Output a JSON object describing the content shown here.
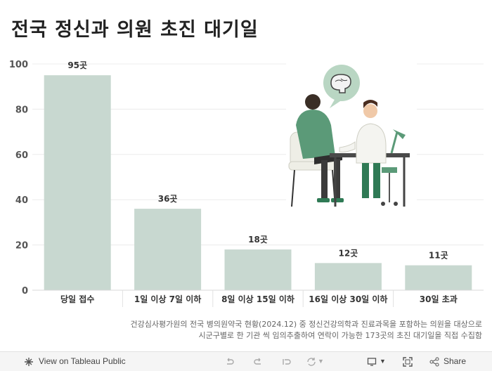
{
  "page": {
    "title": "전국 정신과 의원 초진 대기일",
    "note_line1": "건강심사평가원의 전국 병의원약국 현황(2024.12) 중 정신건강의학과 진료과목을 포함하는 의원을 대상으로",
    "note_line2": "시군구별로 한 기관 씩 임의추출하여 연락이 가능한 173곳의 초진 대기일을 직접 수집함"
  },
  "toolbar": {
    "view_label": "View on Tableau Public",
    "share_label": "Share"
  },
  "chart_data": {
    "type": "bar",
    "title": "전국 정신과 의원 초진 대기일",
    "categories": [
      "당일 접수",
      "1일 이상 7일 이하",
      "8일 이상 15일 이하",
      "16일 이상 30일 이하",
      "30일 초과"
    ],
    "values": [
      95,
      36,
      18,
      12,
      11
    ],
    "data_labels": [
      "95곳",
      "36곳",
      "18곳",
      "12곳",
      "11곳"
    ],
    "yticks": [
      0,
      20,
      40,
      60,
      80,
      100
    ],
    "ylim": [
      0,
      100
    ],
    "grid": true,
    "bar_color": "#c8d8d0",
    "xlabel": "",
    "ylabel": ""
  }
}
